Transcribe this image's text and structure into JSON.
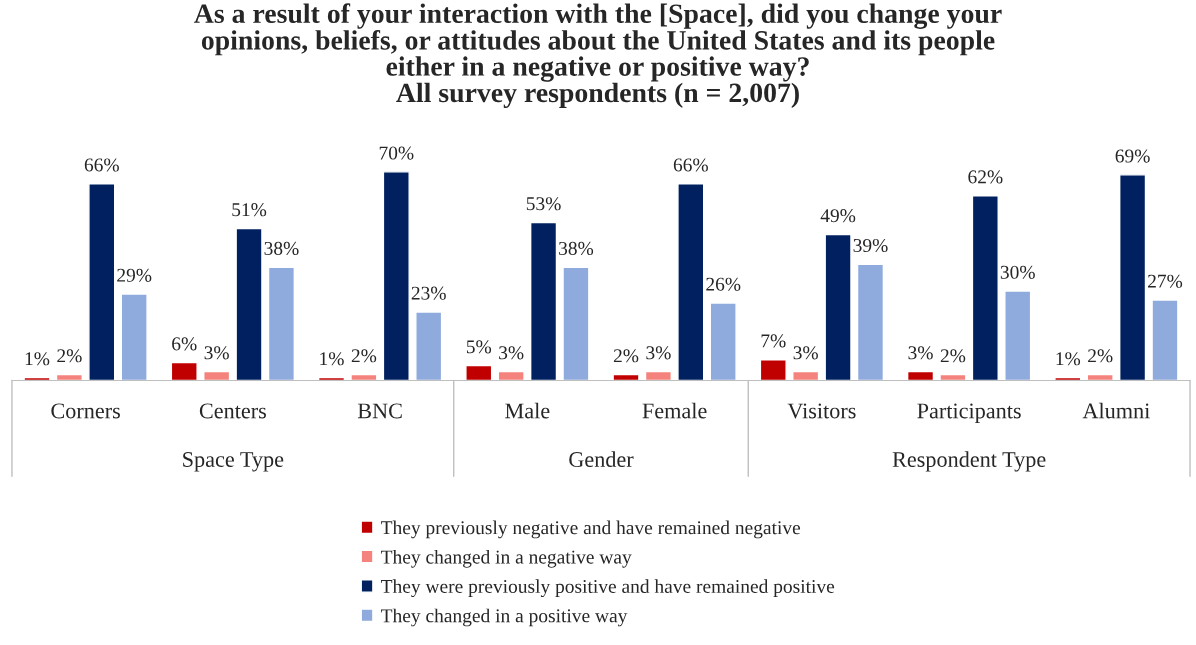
{
  "chart_data": {
    "type": "bar",
    "title": "As a result of your interaction with the [Space], did you change your\nopinions, beliefs, or attitudes about the United States and its people\neither in a negative or positive way?\nAll survey respondents (n = 2,007)",
    "categories": [
      "Corners",
      "Centers",
      "BNC",
      "Male",
      "Female",
      "Visitors",
      "Participants",
      "Alumni"
    ],
    "series": [
      {
        "name": "They previously negative and have remained negative",
        "color": "#c00000",
        "values": [
          1,
          6,
          1,
          5,
          2,
          7,
          3,
          1
        ],
        "value_labels": [
          "1%",
          "6%",
          "1%",
          "5%",
          "2%",
          "7%",
          "3%",
          "1%"
        ]
      },
      {
        "name": "They changed in a negative way",
        "color": "#f4837d",
        "values": [
          2,
          3,
          2,
          3,
          3,
          3,
          2,
          2
        ],
        "value_labels": [
          "2%",
          "3%",
          "2%",
          "3%",
          "3%",
          "3%",
          "2%",
          "2%"
        ]
      },
      {
        "name": "They were previously positive and have remained positive",
        "color": "#002060",
        "values": [
          66,
          51,
          70,
          53,
          66,
          49,
          62,
          69
        ],
        "value_labels": [
          "66%",
          "51%",
          "70%",
          "53%",
          "66%",
          "49%",
          "62%",
          "69%"
        ]
      },
      {
        "name": "They changed in a positive way",
        "color": "#8faadc",
        "values": [
          29,
          38,
          23,
          38,
          26,
          39,
          30,
          27
        ],
        "value_labels": [
          "29%",
          "38%",
          "23%",
          "38%",
          "26%",
          "39%",
          "30%",
          "27%"
        ]
      }
    ],
    "annotations": [
      "Space Type",
      "Gender",
      "Respondent Type"
    ],
    "legend": "bottom",
    "grid": false
  }
}
